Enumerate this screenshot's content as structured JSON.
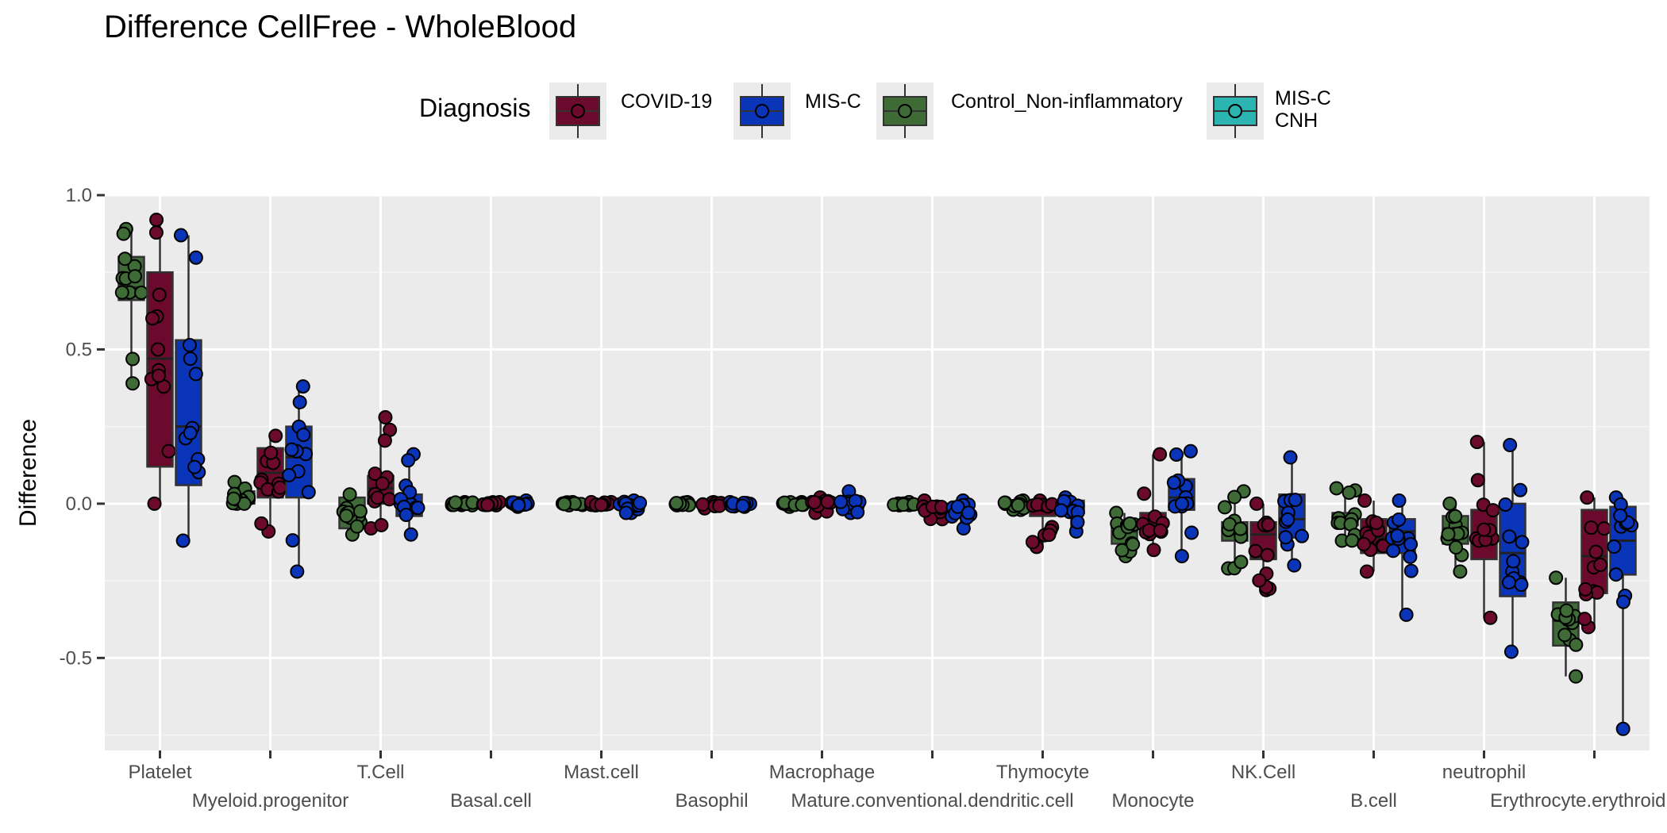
{
  "chart_data": {
    "type": "box",
    "title": "Difference CellFree - WholeBlood",
    "xlabel": "",
    "ylabel": "Difference",
    "ylim": [
      -0.8,
      1.0
    ],
    "yticks": [
      -0.5,
      0.0,
      0.5,
      1.0
    ],
    "ytick_labels": [
      "-0.5",
      "0.0",
      "0.5",
      "1.0"
    ],
    "grid": true,
    "legend": {
      "title": "Diagnosis",
      "position": "top",
      "entries": [
        {
          "label": "COVID-19",
          "color": "#6b0a2c"
        },
        {
          "label": "MIS-C",
          "color": "#0b35b8"
        },
        {
          "label": "Control_Non-inflammatory",
          "color": "#3e6b36"
        },
        {
          "label": "MIS-C\nCNH",
          "color": "#2cb5b0"
        }
      ]
    },
    "categories": [
      "Platelet",
      "Myeloid.progenitor",
      "T.Cell",
      "Basal.cell",
      "Mast.cell",
      "Basophil",
      "Macrophage",
      "Mature.conventional.dendritic.cell",
      "Thymocyte",
      "Monocyte",
      "NK.Cell",
      "B.cell",
      "neutrophil",
      "Erythrocyte.erythroid.pro"
    ],
    "series_colors": {
      "Control_Non-inflammatory": "#3e6b36",
      "COVID-19": "#6b0a2c",
      "MIS-C": "#0b35b8"
    },
    "series_order": [
      "Control_Non-inflammatory",
      "COVID-19",
      "MIS-C"
    ],
    "boxes": [
      {
        "Control_Non-inflammatory": [
          0.66,
          0.7,
          0.8,
          0.39,
          0.89
        ],
        "COVID-19": [
          0.12,
          0.47,
          0.75,
          0.0,
          0.92
        ],
        "MIS-C": [
          0.06,
          0.25,
          0.53,
          -0.12,
          0.87
        ]
      },
      {
        "Control_Non-inflammatory": [
          0.0,
          0.02,
          0.04,
          0.0,
          0.07
        ],
        "COVID-19": [
          0.02,
          0.1,
          0.18,
          -0.09,
          0.22
        ],
        "MIS-C": [
          0.02,
          0.15,
          0.25,
          -0.22,
          0.38
        ]
      },
      {
        "Control_Non-inflammatory": [
          -0.08,
          -0.03,
          0.02,
          -0.1,
          0.03
        ],
        "COVID-19": [
          0.0,
          0.05,
          0.09,
          -0.08,
          0.28
        ],
        "MIS-C": [
          -0.04,
          0.0,
          0.03,
          -0.1,
          0.16
        ]
      },
      {
        "Control_Non-inflammatory": [
          -0.005,
          0.0,
          0.005,
          -0.005,
          0.005
        ],
        "COVID-19": [
          -0.005,
          0.0,
          0.005,
          -0.005,
          0.005
        ],
        "MIS-C": [
          -0.005,
          0.0,
          0.005,
          -0.01,
          0.01
        ]
      },
      {
        "Control_Non-inflammatory": [
          -0.005,
          0.0,
          0.005,
          -0.005,
          0.005
        ],
        "COVID-19": [
          -0.005,
          0.0,
          0.005,
          -0.005,
          0.005
        ],
        "MIS-C": [
          -0.01,
          0.0,
          0.005,
          -0.03,
          0.01
        ]
      },
      {
        "Control_Non-inflammatory": [
          -0.005,
          0.0,
          0.005,
          -0.005,
          0.005
        ],
        "COVID-19": [
          -0.01,
          0.0,
          0.005,
          -0.015,
          0.005
        ],
        "MIS-C": [
          -0.01,
          0.0,
          0.005,
          -0.01,
          0.005
        ]
      },
      {
        "Control_Non-inflammatory": [
          -0.005,
          0.0,
          0.005,
          -0.01,
          0.005
        ],
        "COVID-19": [
          -0.01,
          0.0,
          0.01,
          -0.03,
          0.02
        ],
        "MIS-C": [
          -0.01,
          0.0,
          0.01,
          -0.03,
          0.04
        ]
      },
      {
        "Control_Non-inflammatory": [
          -0.005,
          0.0,
          0.005,
          -0.005,
          0.005
        ],
        "COVID-19": [
          -0.03,
          -0.01,
          0.0,
          -0.05,
          0.01
        ],
        "MIS-C": [
          -0.04,
          -0.02,
          0.0,
          -0.08,
          0.01
        ]
      },
      {
        "Control_Non-inflammatory": [
          -0.01,
          0.0,
          0.005,
          -0.02,
          0.01
        ],
        "COVID-19": [
          -0.04,
          -0.02,
          0.0,
          -0.14,
          0.01
        ],
        "MIS-C": [
          -0.03,
          -0.01,
          0.01,
          -0.09,
          0.02
        ]
      },
      {
        "Control_Non-inflammatory": [
          -0.13,
          -0.09,
          -0.06,
          -0.17,
          -0.03
        ],
        "COVID-19": [
          -0.1,
          -0.07,
          -0.03,
          -0.15,
          0.16
        ],
        "MIS-C": [
          -0.02,
          0.02,
          0.08,
          -0.17,
          0.17
        ]
      },
      {
        "Control_Non-inflammatory": [
          -0.12,
          -0.09,
          -0.06,
          -0.21,
          0.04
        ],
        "COVID-19": [
          -0.18,
          -0.1,
          -0.06,
          -0.28,
          0.0
        ],
        "MIS-C": [
          -0.11,
          -0.05,
          0.03,
          -0.2,
          0.15
        ]
      },
      {
        "Control_Non-inflammatory": [
          -0.07,
          -0.05,
          -0.03,
          -0.12,
          0.05
        ],
        "COVID-19": [
          -0.16,
          -0.11,
          -0.05,
          -0.22,
          0.01
        ],
        "MIS-C": [
          -0.16,
          -0.09,
          -0.05,
          -0.36,
          0.01
        ]
      },
      {
        "Control_Non-inflammatory": [
          -0.13,
          -0.08,
          -0.04,
          -0.22,
          0.0
        ],
        "COVID-19": [
          -0.18,
          -0.1,
          -0.02,
          -0.37,
          0.2
        ],
        "MIS-C": [
          -0.3,
          -0.16,
          0.0,
          -0.48,
          0.19
        ]
      },
      {
        "Control_Non-inflammatory": [
          -0.46,
          -0.38,
          -0.32,
          -0.56,
          -0.24
        ],
        "COVID-19": [
          -0.29,
          -0.17,
          -0.02,
          -0.4,
          0.02
        ],
        "MIS-C": [
          -0.23,
          -0.12,
          -0.01,
          -0.73,
          0.02
        ]
      }
    ]
  }
}
